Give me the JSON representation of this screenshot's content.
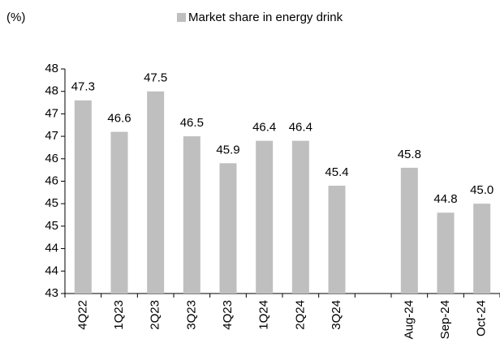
{
  "chart_data": {
    "type": "bar",
    "y_label": "(%)",
    "categories": [
      "4Q22",
      "1Q23",
      "2Q23",
      "3Q23",
      "4Q23",
      "1Q24",
      "2Q24",
      "3Q24",
      null,
      "Aug-24",
      "Sep-24",
      "Oct-24"
    ],
    "series": [
      {
        "name": "Market share in energy drink",
        "color": "#bfbfbf",
        "values": [
          47.3,
          46.6,
          47.5,
          46.5,
          45.9,
          46.4,
          46.4,
          45.4,
          null,
          45.8,
          44.8,
          45.0
        ],
        "value_labels": [
          "47.3",
          "46.6",
          "47.5",
          "46.5",
          "45.9",
          "46.4",
          "46.4",
          "45.4",
          null,
          "45.8",
          "44.8",
          "45.0"
        ]
      }
    ],
    "ylim": [
      43,
      48
    ],
    "yticks": [
      43,
      {
        "value": 43.5,
        "label": "44"
      },
      44,
      {
        "value": 44.5,
        "label": "45"
      },
      45,
      {
        "value": 45.5,
        "label": "46"
      },
      46,
      {
        "value": 46.5,
        "label": "47"
      },
      47,
      {
        "value": 47.5,
        "label": "48"
      },
      48
    ],
    "grid": false,
    "legend": "top"
  }
}
